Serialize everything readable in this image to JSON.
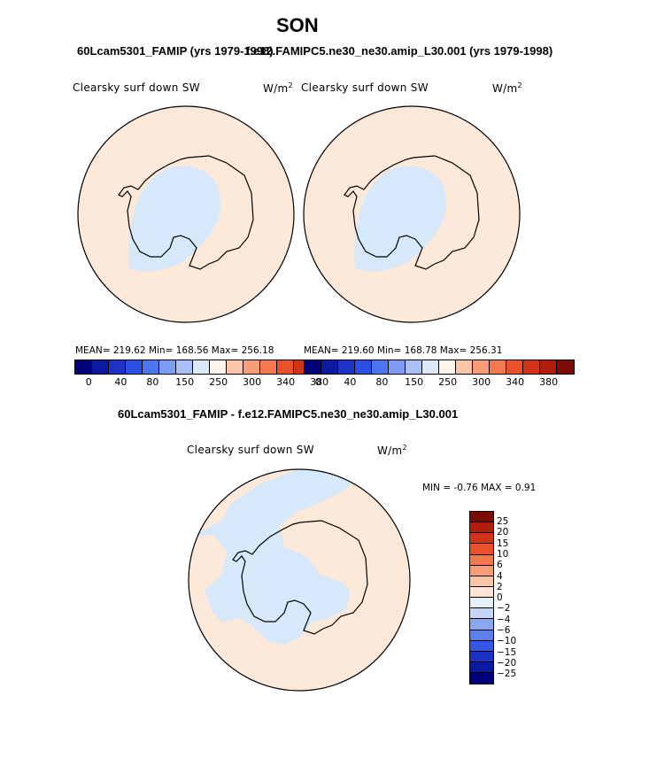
{
  "title": "SON",
  "left_panel": {
    "subtitle": "60Lcam5301_FAMIP (yrs 1979-1998)",
    "field": "Clearsky surf down SW",
    "units": "W/m",
    "units_sup": "2",
    "stats": "MEAN= 219.62   Min= 168.56   Max= 256.18"
  },
  "right_panel": {
    "subtitle": "f.e12.FAMIPC5.ne30_ne30.amip_L30.001 (yrs 1979-1998)",
    "field": "Clearsky surf down SW",
    "units": "W/m",
    "units_sup": "2",
    "stats": "MEAN= 219.60   Min= 168.78   Max= 256.31"
  },
  "colorbar_top": {
    "ticks": [
      "0",
      "40",
      "80",
      "150",
      "250",
      "300",
      "340",
      "380"
    ],
    "colors": [
      "#00007a",
      "#0b1aa0",
      "#1e32c8",
      "#2b50e6",
      "#4a74f0",
      "#7c9cf5",
      "#a8c0f7",
      "#dbe8f8",
      "#fff4ea",
      "#fbc6a7",
      "#f89d78",
      "#f47a4e",
      "#e9522a",
      "#d33418",
      "#b01d0d",
      "#7d0b05"
    ]
  },
  "diff_panel": {
    "subtitle": "60Lcam5301_FAMIP - f.e12.FAMIPC5.ne30_ne30.amip_L30.001",
    "field": "Clearsky surf down SW",
    "units": "W/m",
    "units_sup": "2",
    "minmax": "MIN =   -0.76  MAX =    0.91"
  },
  "colorbar_diff": {
    "ticks": [
      "25",
      "20",
      "15",
      "10",
      "6",
      "4",
      "2",
      "0",
      "−2",
      "−4",
      "−6",
      "−10",
      "−15",
      "−20",
      "−25"
    ],
    "colors": [
      "#7d0b05",
      "#b01d0d",
      "#d33418",
      "#e9522a",
      "#f47a4e",
      "#f89d78",
      "#fbc6a7",
      "#fde6d6",
      "#e8eef8",
      "#c3d4f5",
      "#8aa8f0",
      "#5d80ec",
      "#3556e6",
      "#1c30c6",
      "#0b1aa0",
      "#00007a"
    ]
  }
}
